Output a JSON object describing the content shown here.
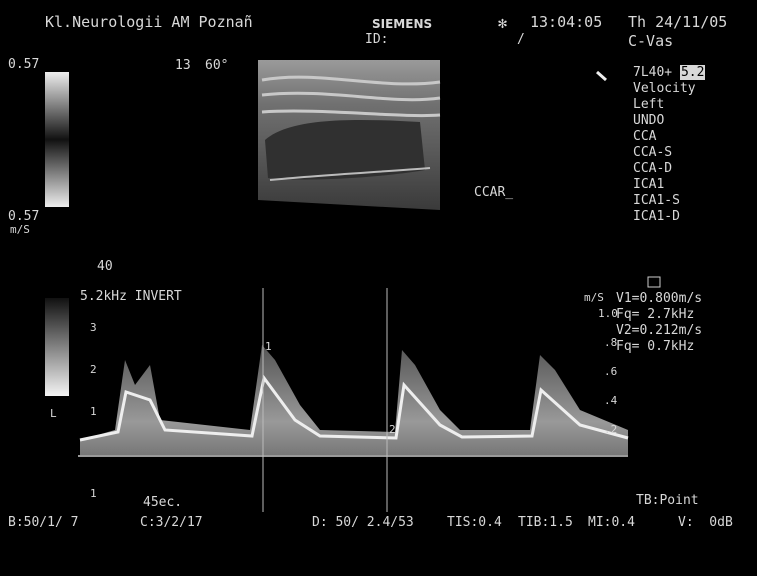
{
  "header": {
    "institution": "Kl.Neurologii AM Poznañ",
    "brand": "SIEMENS",
    "id": "ID:",
    "slash": "/",
    "time": "13:04:05",
    "date": "Th 24/11/05",
    "preset": "C-Vas"
  },
  "color_scale": {
    "top": "0.57",
    "bottom": "0.57",
    "unit": "m/S",
    "depth": "13",
    "angle": "60°"
  },
  "menu": {
    "transducer": "7L40+",
    "frequency": "5.2",
    "items": [
      "Velocity",
      "Left",
      "UNDO",
      "CCA",
      "CCA-S",
      "CCA-D",
      "ICA1",
      "ICA1-S",
      "ICA1-D"
    ]
  },
  "annotation": "CCAR_",
  "doppler": {
    "gate": "40",
    "prf": "5.2kHz INVERT",
    "left_scale": [
      "3",
      "2",
      "1",
      "L",
      "1"
    ],
    "sweep": "45ec.",
    "right_unit": "m/S",
    "right_scale": [
      "1.0",
      ".8",
      ".6",
      ".4",
      ".2"
    ],
    "cursor1": "1",
    "cursor2": "2",
    "measurements": [
      "V1=0.800m/s",
      "Fq= 2.7kHz",
      "V2=0.212m/s",
      "Fq= 0.7kHz"
    ],
    "mode": "TB:Point"
  },
  "footer": {
    "b": "B:50/1/ 7",
    "c": "C:3/2/17",
    "d": "D: 50/ 2.4/53",
    "tis": "TIS:0.4",
    "tib": "TIB:1.5",
    "mi": "MI:0.4",
    "v": "V:  0dB"
  }
}
